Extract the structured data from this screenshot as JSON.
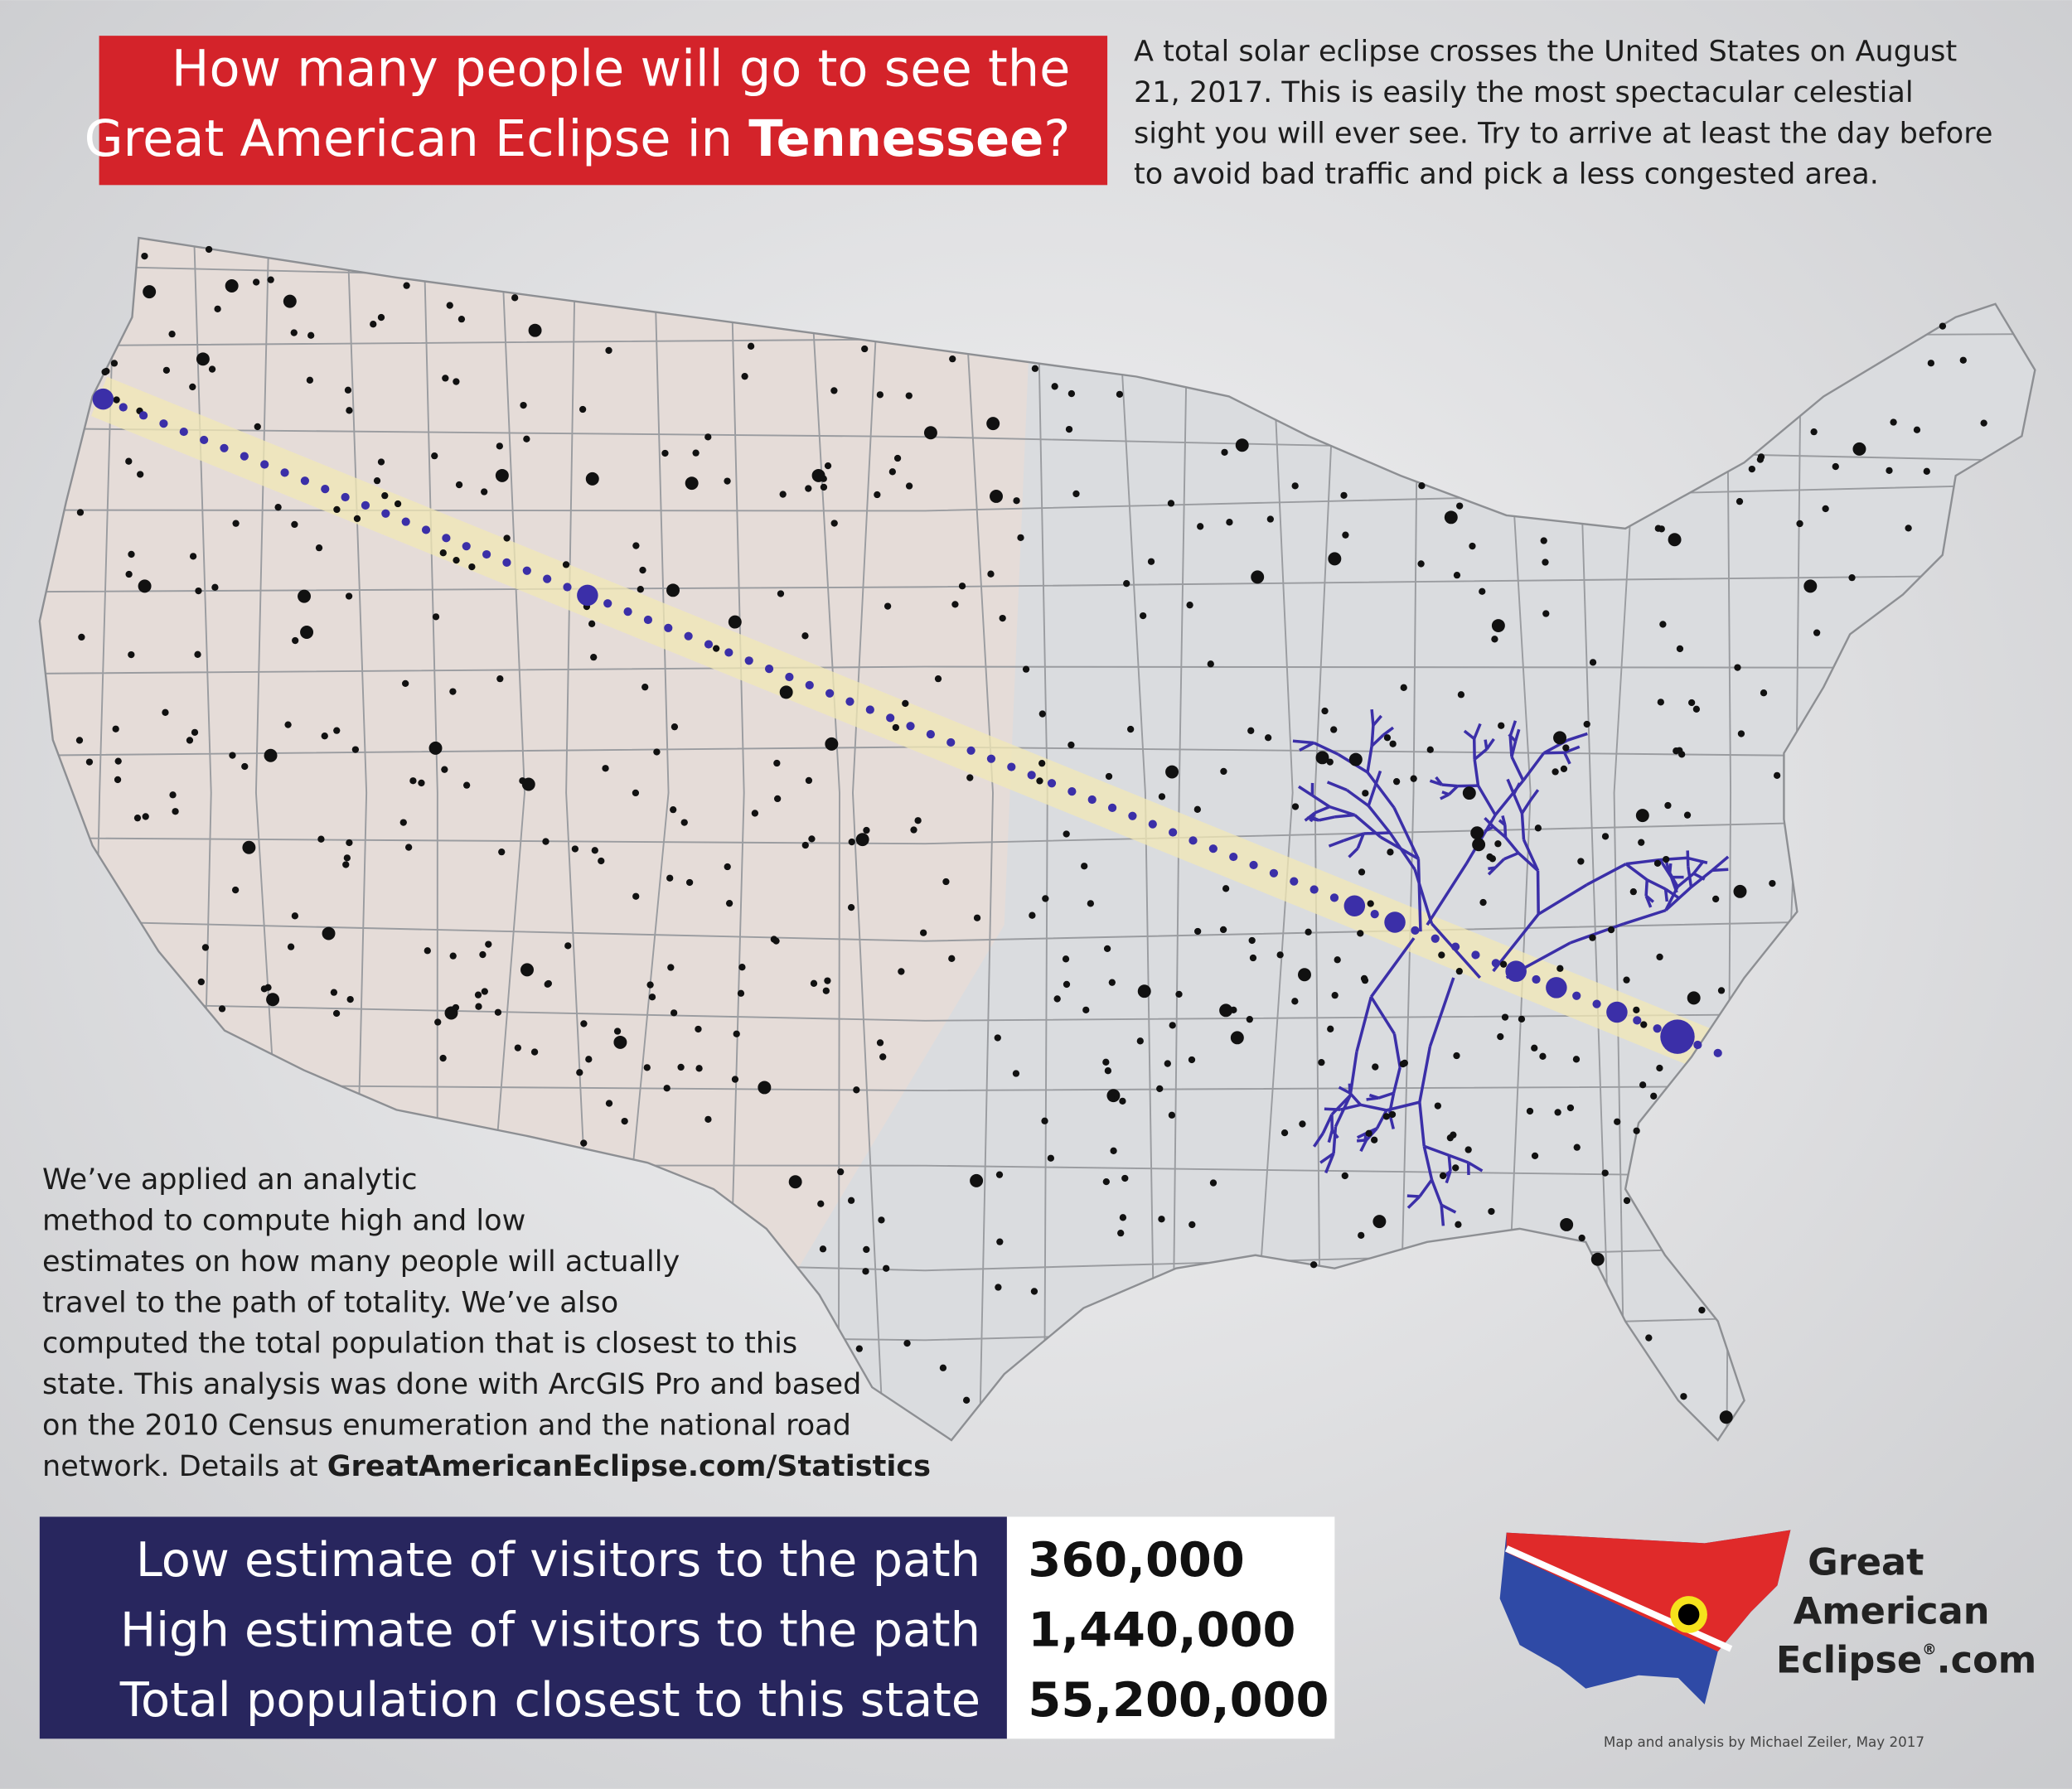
{
  "header": {
    "title_line1": "How many people will go to see the",
    "title_line2": "Great American Eclipse in ",
    "state": "Tennessee",
    "title_end": "?",
    "intro": [
      "A total solar eclipse crosses the United States on August",
      "21, 2017. This is easily the most spectacular celestial",
      "sight you will ever see. Try to arrive at least the day before",
      "to avoid bad traffic and pick a less congested area."
    ]
  },
  "method": {
    "lines": [
      "We’ve applied an analytic",
      "method to compute high and low",
      "estimates on how many people will actually",
      "travel to the path of totality. We’ve also",
      "computed the total population that is closest to this",
      "state. This analysis was done with ArcGIS Pro and based",
      "on the 2010 Census enumeration and the national road"
    ],
    "last_line": "network. Details at ",
    "link": "GreatAmericanEclipse.com/Statistics"
  },
  "table": {
    "rows": [
      [
        "Low estimate of visitors to the path",
        "360,000"
      ],
      [
        "High estimate of visitors to the path",
        "1,440,000"
      ],
      [
        "Total population closest to this state",
        "55,200,000"
      ]
    ]
  },
  "logo": {
    "line1": "Great",
    "line2": "American",
    "line3": "Eclipse",
    "mark": "®",
    "suffix": ".com"
  },
  "credit": "Map and analysis by Michael Zeiler, May 2017"
}
